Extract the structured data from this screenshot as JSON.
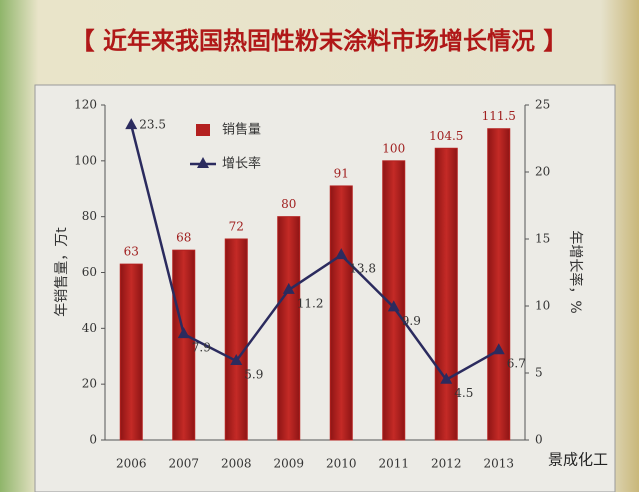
{
  "chart_data": {
    "type": "bar-line",
    "title": "【 近年来我国热固性粉末涂料市场增长情况 】",
    "y_label": "年销售量，万t",
    "y2_label": "年增长率，%",
    "categories": [
      "2006",
      "2007",
      "2008",
      "2009",
      "2010",
      "2011",
      "2012",
      "2013"
    ],
    "series": [
      {
        "name": "销售量",
        "type": "bar",
        "color": "#b3201f",
        "values": [
          63,
          68,
          72,
          80,
          91,
          100,
          104.5,
          111.5
        ]
      },
      {
        "name": "增长率",
        "type": "line",
        "axis": "y2",
        "color": "#2b2b5e",
        "values": [
          23.5,
          7.9,
          5.9,
          11.2,
          13.8,
          9.9,
          4.5,
          6.7
        ]
      }
    ],
    "ylim": [
      0,
      120
    ],
    "yticks": [
      0,
      20,
      40,
      60,
      80,
      100,
      120
    ],
    "y2lim": [
      0,
      25
    ],
    "y2ticks": [
      0,
      5,
      10,
      15,
      20,
      25
    ]
  },
  "watermark": "景成化工"
}
